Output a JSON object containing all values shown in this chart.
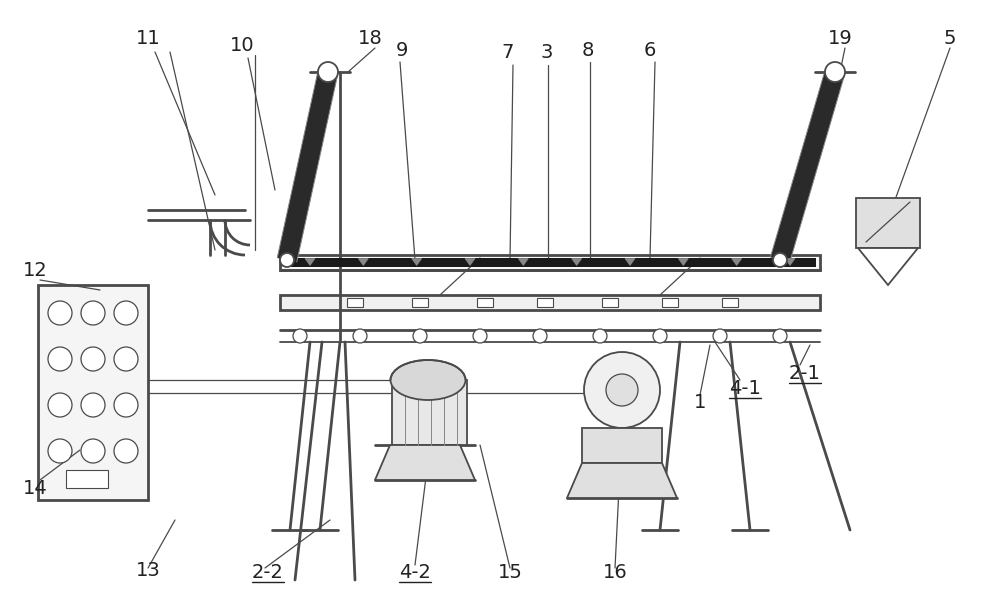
{
  "bg_color": "#ffffff",
  "lc": "#4a4a4a",
  "dc": "#111111",
  "figsize": [
    10.0,
    6.15
  ],
  "dpi": 100,
  "label_fs": 12,
  "label_color": "#222222"
}
